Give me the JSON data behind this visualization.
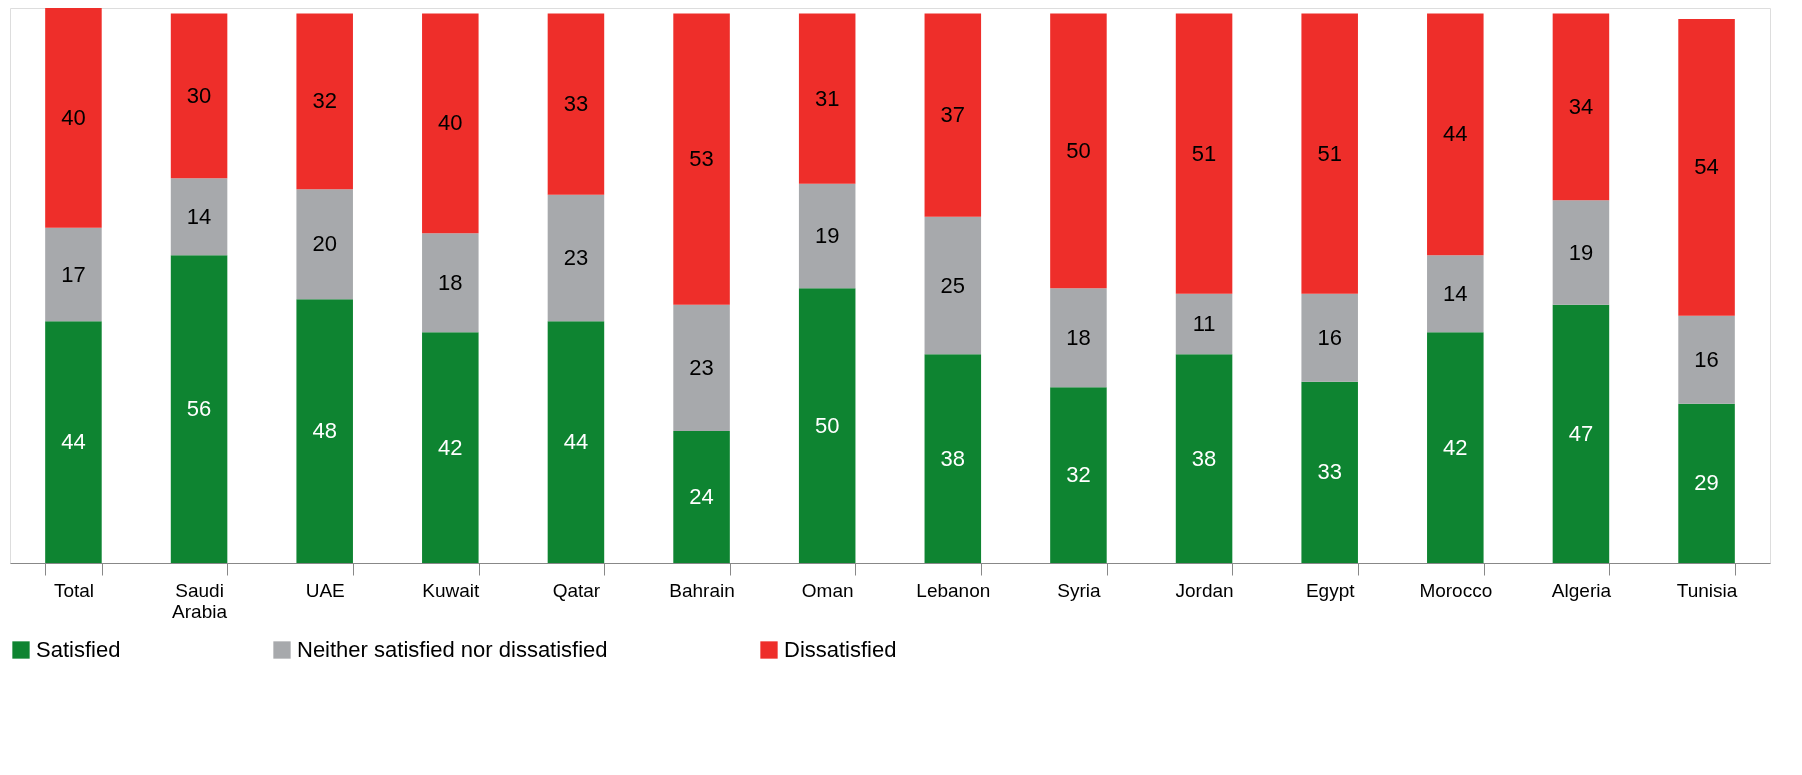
{
  "chart_data": {
    "type": "bar",
    "stacked": true,
    "data_labels": true,
    "legend": "bottom",
    "grid": false,
    "categories": [
      "Total",
      "Saudi Arabia",
      "UAE",
      "Kuwait",
      "Qatar",
      "Bahrain",
      "Oman",
      "Lebanon",
      "Syria",
      "Jordan",
      "Egypt",
      "Morocco",
      "Algeria",
      "Tunisia"
    ],
    "series": [
      {
        "name": "Satisfied",
        "color": "#0e8431",
        "values": [
          44,
          56,
          48,
          42,
          44,
          24,
          50,
          38,
          32,
          38,
          33,
          42,
          47,
          29
        ]
      },
      {
        "name": "Neither satisfied nor dissatisfied",
        "color": "#a7a9ac",
        "values": [
          17,
          14,
          20,
          18,
          23,
          23,
          19,
          25,
          18,
          11,
          16,
          14,
          19,
          16
        ]
      },
      {
        "name": "Dissatisfied",
        "color": "#ee2e2a",
        "values": [
          40,
          30,
          32,
          40,
          33,
          53,
          31,
          37,
          50,
          51,
          51,
          44,
          34,
          54
        ]
      }
    ]
  }
}
